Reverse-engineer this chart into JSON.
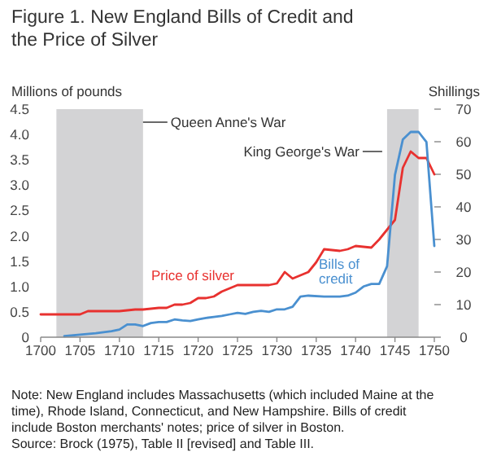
{
  "chart_data": {
    "type": "line",
    "title": "Figure 1. New England Bills of Credit and the Price of Silver",
    "ylabel": "Millions of pounds",
    "y2label": "Shillings",
    "xlim": [
      1700,
      1750
    ],
    "xticks": [
      1700,
      1705,
      1710,
      1715,
      1720,
      1725,
      1730,
      1735,
      1740,
      1745,
      1750
    ],
    "ylim": [
      0,
      4.5
    ],
    "yticks": [
      0,
      {
        "value": 0.5,
        "label": "0.5"
      },
      {
        "value": 1,
        "label": "1.0"
      },
      {
        "value": 1.5,
        "label": "1.5"
      },
      {
        "value": 2,
        "label": "2.0"
      },
      {
        "value": 2.5,
        "label": "2.5"
      },
      {
        "value": 3,
        "label": "3.0"
      },
      {
        "value": 3.5,
        "label": "3.5"
      },
      {
        "value": 4,
        "label": "4.0"
      },
      {
        "value": 4.5,
        "label": "4.5"
      }
    ],
    "y2lim": [
      0,
      70
    ],
    "y2ticks": [
      0,
      10,
      20,
      30,
      40,
      50,
      60,
      70
    ],
    "bands": [
      {
        "axis": "x",
        "from": 1702,
        "to": 1713,
        "label": "Queen Anne's War",
        "color": "#d3d3d5"
      },
      {
        "axis": "x",
        "from": 1744,
        "to": 1748,
        "label": "King George's War",
        "color": "#d3d3d5"
      }
    ],
    "series": [
      {
        "name": "Price of silver",
        "color": "#e8312f",
        "axis": "y2",
        "x": [
          1700,
          1701,
          1702,
          1703,
          1704,
          1705,
          1706,
          1708,
          1710,
          1712,
          1713,
          1715,
          1716,
          1717,
          1718,
          1719,
          1720,
          1721,
          1722,
          1723,
          1724,
          1725,
          1727,
          1728,
          1729,
          1730,
          1731,
          1732,
          1733,
          1734,
          1735,
          1736,
          1738,
          1739,
          1740,
          1742,
          1743,
          1744,
          1745,
          1746,
          1747,
          1748,
          1749,
          1750
        ],
        "values": [
          7,
          7,
          7,
          7,
          7,
          7,
          8,
          8,
          8,
          8.5,
          8.5,
          9,
          9,
          10,
          10,
          10.5,
          12,
          12,
          12.5,
          14,
          15,
          16,
          16,
          16,
          16,
          16.5,
          20,
          18,
          19,
          20,
          23,
          27,
          26.5,
          27,
          28,
          27.5,
          30,
          33,
          36,
          52,
          57,
          55,
          55,
          50
        ]
      },
      {
        "name": "Bills of\ncredit",
        "color": "#4a90d0",
        "axis": "y",
        "x": [
          1703,
          1705,
          1707,
          1709,
          1710,
          1711,
          1712,
          1713,
          1714,
          1715,
          1716,
          1717,
          1718,
          1719,
          1720,
          1721,
          1722,
          1723,
          1724,
          1725,
          1726,
          1727,
          1728,
          1729,
          1730,
          1731,
          1732,
          1733,
          1734,
          1736,
          1738,
          1739,
          1740,
          1741,
          1742,
          1743,
          1744,
          1745,
          1746,
          1747,
          1748,
          1749,
          1750
        ],
        "values": [
          0.02,
          0.05,
          0.08,
          0.12,
          0.15,
          0.25,
          0.25,
          0.22,
          0.28,
          0.3,
          0.3,
          0.35,
          0.33,
          0.32,
          0.35,
          0.38,
          0.4,
          0.42,
          0.45,
          0.48,
          0.46,
          0.5,
          0.52,
          0.5,
          0.55,
          0.55,
          0.6,
          0.8,
          0.82,
          0.8,
          0.8,
          0.82,
          0.88,
          1.0,
          1.05,
          1.05,
          1.4,
          3.2,
          3.9,
          4.05,
          4.05,
          3.85,
          1.8
        ]
      }
    ],
    "annotations": [
      "Note: New England includes Massachusetts (which included Maine at the time), Rhode Island, Connecticut, and New Hampshire. Bills of credit include Boston merchants' notes; price of silver in Boston.",
      "Source: Brock (1975), Table II [revised] and Table III."
    ]
  }
}
